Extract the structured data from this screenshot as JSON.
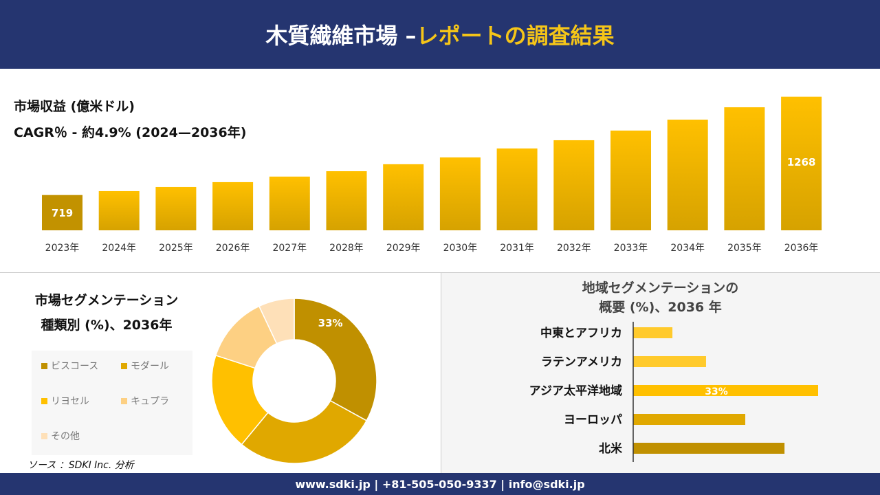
{
  "header": {
    "title_main": "木質繊維市場 –",
    "title_accent": "レポートの調査結果"
  },
  "colors": {
    "navy": "#253570",
    "accent": "#F5C518"
  },
  "revenue": {
    "label": "市場収益 (億米ドル)",
    "cagr": "CAGR％ - 約4.9% (2024—2036年)"
  },
  "segment": {
    "title1": "市場セグメンテーション",
    "title2": "種類別 (%)、2036年",
    "source": "ソース ：SDKI Inc. 分析"
  },
  "region": {
    "title1": "地域セグメンテーションの",
    "title2": "概要 (%)、2036 年"
  },
  "footer": {
    "text": "www.sdki.jp | +81-505-050-9337 | info@sdki.jp"
  },
  "chart_data": [
    {
      "type": "bar",
      "categories": [
        "2023年",
        "2024年",
        "2025年",
        "2026年",
        "2027年",
        "2028年",
        "2029年",
        "2030年",
        "2031年",
        "2032年",
        "2033年",
        "2034年",
        "2035年",
        "2036年"
      ],
      "values": [
        719,
        741,
        764,
        791,
        822,
        852,
        891,
        929,
        979,
        1025,
        1079,
        1140,
        1209,
        1268
      ],
      "data_labels": {
        "0": "719",
        "13": "1268"
      },
      "grid": false
    },
    {
      "type": "pie",
      "donut": true,
      "categories": [
        "ビスコース",
        "モダール",
        "リヨセル",
        "キュプラ",
        "その他"
      ],
      "values": [
        33,
        28,
        19,
        13,
        7
      ],
      "colors": [
        "#C09000",
        "#E0A800",
        "#FFC000",
        "#FDD083",
        "#FEE0B8"
      ],
      "data_labels": {
        "0": "33%"
      },
      "legend": "left"
    },
    {
      "type": "bar",
      "orientation": "horizontal",
      "categories": [
        "中東とアフリカ",
        "ラテンアメリカ",
        "アジア太平洋地域",
        "ヨーロッパ",
        "北米"
      ],
      "values": [
        7,
        13,
        33,
        20,
        27
      ],
      "colors": [
        "#FFCA2C",
        "#FFCA2C",
        "#FFC000",
        "#E0A800",
        "#C09000"
      ],
      "data_labels": {
        "2": "33%"
      }
    }
  ]
}
